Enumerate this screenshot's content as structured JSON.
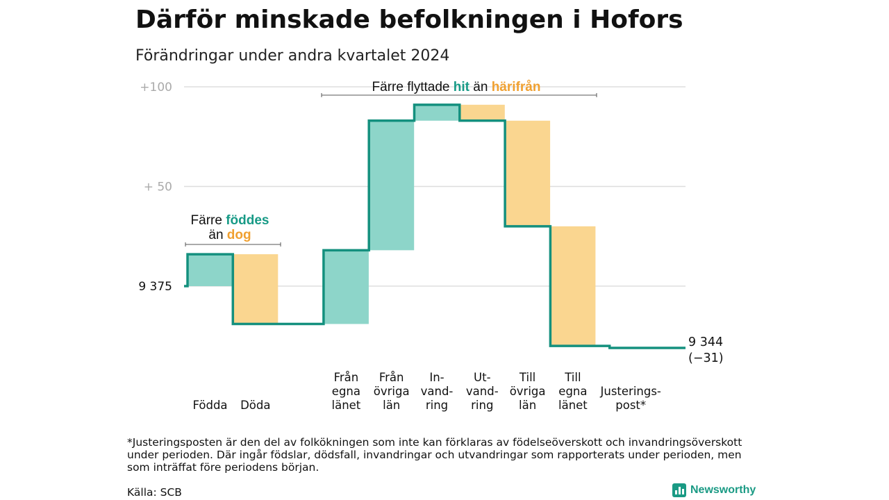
{
  "title": "Därför minskade befolkningen i Hofors",
  "subtitle": "Förändringar under andra kvartalet 2024",
  "colors": {
    "in": "#8dd5c9",
    "out": "#fad690",
    "line": "#14907e",
    "grid": "#dddddd",
    "accent_in": "#179a86",
    "accent_out": "#f0a030"
  },
  "chart_data": {
    "type": "waterfall",
    "start_value": 9375,
    "end_value": 9344,
    "ylim": [
      9340,
      9475
    ],
    "yticks": [
      {
        "value": 9475,
        "label": "+100"
      },
      {
        "value": 9425,
        "label": "+  50"
      },
      {
        "value": 9375,
        "label": "9  375"
      }
    ],
    "steps": [
      {
        "label": [
          "Födda"
        ],
        "delta": 16,
        "kind": "in"
      },
      {
        "label": [
          "Döda"
        ],
        "delta": -35,
        "kind": "out"
      },
      {
        "label": [],
        "delta": 0,
        "kind": "gap"
      },
      {
        "label": [
          "Från",
          "egna",
          "länet"
        ],
        "delta": 37,
        "kind": "in"
      },
      {
        "label": [
          "Från",
          "övriga",
          "län"
        ],
        "delta": 65,
        "kind": "in"
      },
      {
        "label": [
          "In-",
          "vand-",
          "ring"
        ],
        "delta": 8,
        "kind": "in"
      },
      {
        "label": [
          "Ut-",
          "vand-",
          "ring"
        ],
        "delta": -8,
        "kind": "out"
      },
      {
        "label": [
          "Till",
          "övriga",
          "län"
        ],
        "delta": -53,
        "kind": "out"
      },
      {
        "label": [
          "Till",
          "egna",
          "länet"
        ],
        "delta": -60,
        "kind": "out"
      },
      {
        "label": [
          "Justerings-",
          "post*"
        ],
        "delta": -1,
        "kind": "adj"
      }
    ],
    "end_label": "9 344",
    "end_change": "(−31)",
    "annotations": [
      {
        "id": "births",
        "parts": [
          {
            "text": "Färre ",
            "style": "plain"
          },
          {
            "text": "föddes",
            "style": "in"
          },
          {
            "text": "än ",
            "style": "plain",
            "newline": true
          },
          {
            "text": "dog",
            "style": "out"
          }
        ]
      },
      {
        "id": "moves",
        "parts": [
          {
            "text": "Färre flyttade ",
            "style": "plain"
          },
          {
            "text": "hit",
            "style": "in"
          },
          {
            "text": " än ",
            "style": "plain"
          },
          {
            "text": "härifrån",
            "style": "out"
          }
        ]
      }
    ]
  },
  "footnote": "*Justeringsposten är den del av folkökningen som inte kan förklaras av födelseöverskott och invandringsöverskott under perioden. Där ingår födslar, dödsfall, invandringar och utvandringar som rapporterats under perioden, men som inträffat före periodens början.",
  "source": "Källa: SCB",
  "brand": "Newsworthy"
}
